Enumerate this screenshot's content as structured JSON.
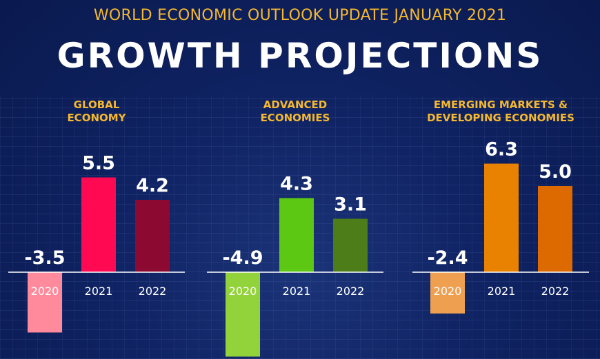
{
  "header": {
    "subtitle": "WORLD ECONOMIC OUTLOOK UPDATE JANUARY 2021",
    "title": "GROWTH PROJECTIONS"
  },
  "chart_data": [
    {
      "type": "bar",
      "title_lines": [
        "GLOBAL",
        "ECONOMY"
      ],
      "categories": [
        "2020",
        "2021",
        "2022"
      ],
      "values": [
        -3.5,
        5.5,
        4.2
      ],
      "value_labels": [
        "-3.5",
        "5.5",
        "4.2"
      ],
      "colors": [
        "#ff8a9c",
        "#ff0a52",
        "#8c0a32"
      ]
    },
    {
      "type": "bar",
      "title_lines": [
        "ADVANCED",
        "ECONOMIES"
      ],
      "categories": [
        "2020",
        "2021",
        "2022"
      ],
      "values": [
        -4.9,
        4.3,
        3.1
      ],
      "value_labels": [
        "-4.9",
        "4.3",
        "3.1"
      ],
      "colors": [
        "#92d23a",
        "#5cc813",
        "#4c7d18"
      ]
    },
    {
      "type": "bar",
      "title_lines": [
        "EMERGING MARKETS &",
        "DEVELOPING ECONOMIES"
      ],
      "categories": [
        "2020",
        "2021",
        "2022"
      ],
      "values": [
        -2.4,
        6.3,
        5.0
      ],
      "value_labels": [
        "-2.4",
        "6.3",
        "5.0"
      ],
      "colors": [
        "#eea050",
        "#e98200",
        "#dc6a00"
      ]
    }
  ]
}
